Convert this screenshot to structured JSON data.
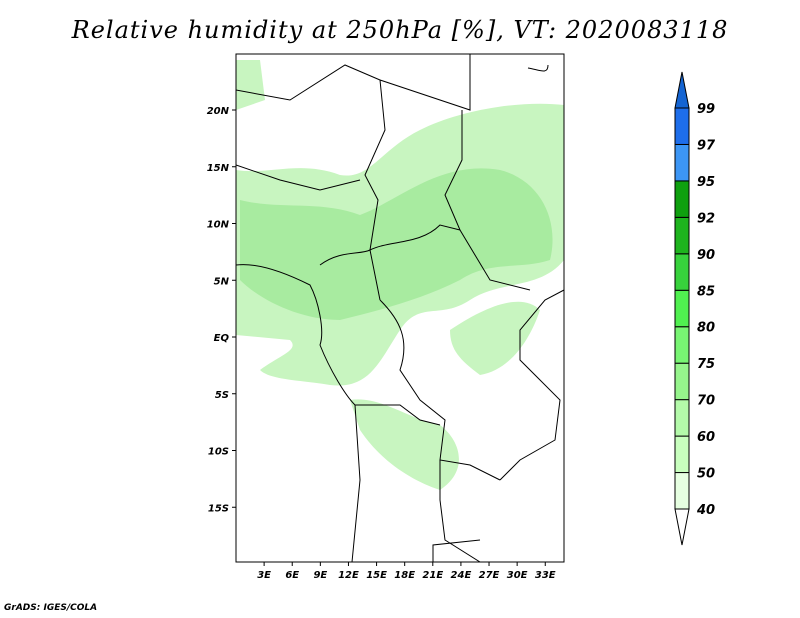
{
  "title": "Relative humidity at 250hPa [%], VT: 2020083118",
  "credit": "GrADS: IGES/COLA",
  "map": {
    "lon_range": [
      0,
      35
    ],
    "lat_range": [
      -20,
      25
    ],
    "lon_ticks": [
      "3E",
      "6E",
      "9E",
      "12E",
      "15E",
      "18E",
      "21E",
      "24E",
      "27E",
      "30E",
      "33E"
    ],
    "lat_ticks": [
      "20N",
      "15N",
      "10N",
      "5N",
      "EQ",
      "5S",
      "10S",
      "15S"
    ],
    "lat_tick_values": [
      20,
      15,
      10,
      5,
      0,
      -5,
      -10,
      -15
    ],
    "lon_tick_values": [
      3,
      6,
      9,
      12,
      15,
      18,
      21,
      24,
      27,
      30,
      33
    ]
  },
  "colorbar": {
    "levels": [
      "40",
      "50",
      "60",
      "70",
      "75",
      "80",
      "85",
      "90",
      "92",
      "95",
      "97",
      "99"
    ],
    "colors": [
      "#ffffff",
      "#e6ffe1",
      "#c8ffbe",
      "#b4faaa",
      "#96f58c",
      "#78f573",
      "#50f050",
      "#37d23c",
      "#1eb41e",
      "#0fa00f",
      "#3c96f5",
      "#1e6eeb",
      "#1464d2"
    ]
  }
}
